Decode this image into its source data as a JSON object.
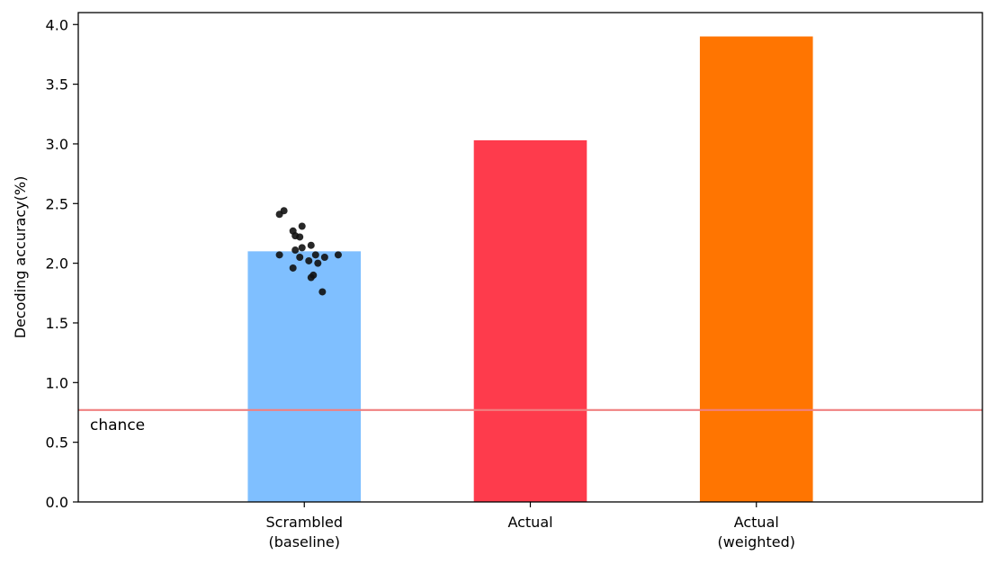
{
  "chart_data": {
    "type": "bar",
    "categories": [
      "Scrambled\n(baseline)",
      "Actual",
      "Actual\n(weighted)"
    ],
    "values": [
      2.1,
      3.03,
      3.9
    ],
    "bar_colors": [
      "#7fbfff",
      "#fe3b4c",
      "#ff7501"
    ],
    "title": "",
    "xlabel": "",
    "ylabel": "Decoding accuracy(%)",
    "ylim": [
      0,
      4.1
    ],
    "xlim": [
      -1,
      3
    ],
    "yticks": [
      0.0,
      0.5,
      1.0,
      1.5,
      2.0,
      2.5,
      3.0,
      3.5,
      4.0
    ],
    "ytick_labels": [
      "0.0",
      "0.5",
      "1.0",
      "1.5",
      "2.0",
      "2.5",
      "3.0",
      "3.5",
      "4.0"
    ],
    "grid": false,
    "chance_line": {
      "value": 0.77,
      "label": "chance",
      "color": "#f08080"
    },
    "scatter": {
      "category_index": 0,
      "color": "#111111",
      "points": [
        {
          "x": -0.11,
          "y": 2.41
        },
        {
          "x": -0.09,
          "y": 2.44
        },
        {
          "x": -0.01,
          "y": 2.31
        },
        {
          "x": -0.05,
          "y": 2.27
        },
        {
          "x": -0.04,
          "y": 2.23
        },
        {
          "x": -0.02,
          "y": 2.22
        },
        {
          "x": 0.03,
          "y": 2.15
        },
        {
          "x": -0.01,
          "y": 2.13
        },
        {
          "x": -0.04,
          "y": 2.11
        },
        {
          "x": -0.11,
          "y": 2.07
        },
        {
          "x": 0.05,
          "y": 2.07
        },
        {
          "x": 0.15,
          "y": 2.07
        },
        {
          "x": -0.02,
          "y": 2.05
        },
        {
          "x": 0.09,
          "y": 2.05
        },
        {
          "x": 0.02,
          "y": 2.02
        },
        {
          "x": 0.06,
          "y": 2.0
        },
        {
          "x": -0.05,
          "y": 1.96
        },
        {
          "x": 0.04,
          "y": 1.9
        },
        {
          "x": 0.03,
          "y": 1.88
        },
        {
          "x": 0.08,
          "y": 1.76
        }
      ]
    }
  }
}
